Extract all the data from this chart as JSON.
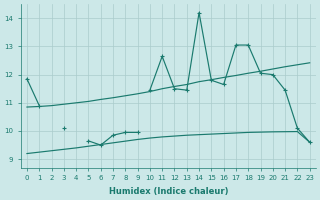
{
  "xlabel": "Humidex (Indice chaleur)",
  "x_values": [
    0,
    1,
    2,
    3,
    4,
    5,
    6,
    7,
    8,
    9,
    10,
    11,
    12,
    13,
    14,
    15,
    16,
    17,
    18,
    19,
    20,
    21,
    22,
    23
  ],
  "jagged_main": [
    11.85,
    10.9,
    null,
    null,
    null,
    null,
    null,
    null,
    null,
    null,
    11.45,
    12.65,
    11.5,
    11.45,
    14.2,
    11.8,
    11.65,
    13.05,
    13.05,
    12.05,
    12.0,
    11.45,
    10.1,
    9.6
  ],
  "jagged_short": [
    null,
    null,
    null,
    10.1,
    null,
    9.65,
    9.5,
    9.85,
    9.95,
    9.95,
    null,
    null,
    null,
    null,
    null,
    null,
    null,
    null,
    null,
    null,
    null,
    null,
    null,
    null
  ],
  "trend_upper": [
    10.85,
    10.87,
    10.9,
    10.95,
    11.0,
    11.05,
    11.12,
    11.18,
    11.25,
    11.32,
    11.4,
    11.5,
    11.58,
    11.65,
    11.75,
    11.82,
    11.9,
    11.97,
    12.05,
    12.12,
    12.2,
    12.28,
    12.35,
    12.42
  ],
  "trend_lower": [
    9.2,
    9.25,
    9.3,
    9.35,
    9.4,
    9.46,
    9.52,
    9.58,
    9.64,
    9.7,
    9.75,
    9.79,
    9.82,
    9.85,
    9.87,
    9.89,
    9.91,
    9.93,
    9.95,
    9.96,
    9.97,
    9.975,
    9.98,
    9.6
  ],
  "bg_color": "#cce8e8",
  "line_color": "#1a7a6e",
  "grid_color": "#aacccc",
  "ylim": [
    8.7,
    14.5
  ],
  "yticks": [
    9,
    10,
    11,
    12,
    13,
    14
  ],
  "xlim": [
    -0.5,
    23.5
  ],
  "xticks": [
    0,
    1,
    2,
    3,
    4,
    5,
    6,
    7,
    8,
    9,
    10,
    11,
    12,
    13,
    14,
    15,
    16,
    17,
    18,
    19,
    20,
    21,
    22,
    23
  ]
}
